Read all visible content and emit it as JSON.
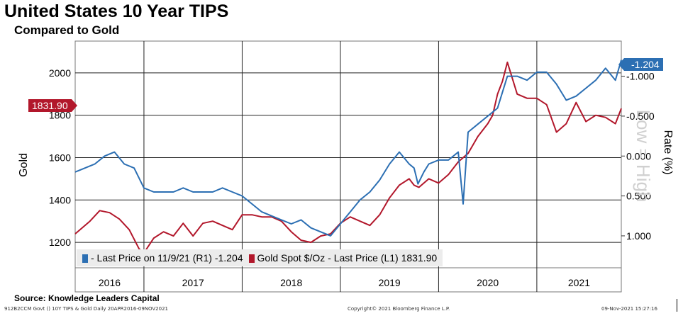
{
  "header": {
    "title": "United States 10 Year TIPS",
    "subtitle": "Compared to Gold"
  },
  "callouts": {
    "gold_last": "1831.90",
    "tips_last": "-1.204"
  },
  "legend": {
    "tips": "- Last Price on 11/9/21 (R1) -1.204",
    "gold": "Gold Spot   $/Oz - Last Price (L1) 1831.90"
  },
  "footer": {
    "source": "Source: Knowledge Leaders Capital",
    "meta": "912B2CCM Govt () 10Y TIPS & Gold  Daily 20APR2016-09NOV2021",
    "copyright": "Copyright© 2021 Bloomberg Finance L.P.",
    "timestamp": "09-Nov-2021 15:27:16"
  },
  "colors": {
    "gold": "#b2172b",
    "tips": "#2c6fb3"
  },
  "chart_data": {
    "type": "line",
    "title": "United States 10 Year TIPS",
    "subtitle": "Compared to Gold",
    "ylabel_left": "Gold",
    "ylabel_right": "Rate (%)",
    "right_axis_note": "Low = High",
    "x_categories": [
      "2016",
      "2017",
      "2018",
      "2019",
      "2020",
      "2021"
    ],
    "x_range": [
      2016.3,
      2021.86
    ],
    "left_axis": {
      "min": 1080,
      "max": 2150,
      "ticks": [
        1200,
        1400,
        1600,
        1800,
        2000
      ],
      "tick_labels": [
        "1200",
        "1400",
        "1600",
        "1800",
        "2000"
      ]
    },
    "right_axis": {
      "top": -1.44,
      "bottom": 1.4,
      "inverted": true,
      "ticks": [
        -1.0,
        -0.5,
        0.0,
        0.5,
        1.0
      ],
      "tick_labels": [
        "-1.000",
        "-0.500",
        "0.000",
        "0.500",
        "1.000"
      ]
    },
    "series": [
      {
        "name": "Gold Spot $/Oz - Last Price (L1)",
        "axis": "left",
        "last": 1831.9,
        "x": [
          2016.3,
          2016.45,
          2016.55,
          2016.65,
          2016.75,
          2016.85,
          2016.95,
          2017.0,
          2017.1,
          2017.2,
          2017.3,
          2017.4,
          2017.5,
          2017.6,
          2017.7,
          2017.8,
          2017.9,
          2018.0,
          2018.1,
          2018.2,
          2018.3,
          2018.4,
          2018.5,
          2018.6,
          2018.7,
          2018.8,
          2018.9,
          2019.0,
          2019.1,
          2019.2,
          2019.3,
          2019.4,
          2019.5,
          2019.6,
          2019.7,
          2019.75,
          2019.8,
          2019.9,
          2020.0,
          2020.1,
          2020.2,
          2020.3,
          2020.4,
          2020.5,
          2020.55,
          2020.6,
          2020.65,
          2020.7,
          2020.8,
          2020.9,
          2021.0,
          2021.1,
          2021.2,
          2021.3,
          2021.4,
          2021.5,
          2021.6,
          2021.7,
          2021.8,
          2021.86
        ],
        "values": [
          1240,
          1300,
          1350,
          1340,
          1310,
          1260,
          1170,
          1150,
          1220,
          1250,
          1230,
          1290,
          1230,
          1290,
          1300,
          1280,
          1260,
          1330,
          1330,
          1320,
          1320,
          1300,
          1250,
          1210,
          1200,
          1230,
          1240,
          1290,
          1320,
          1300,
          1280,
          1330,
          1410,
          1470,
          1500,
          1470,
          1460,
          1500,
          1480,
          1520,
          1580,
          1620,
          1700,
          1760,
          1800,
          1900,
          1960,
          2050,
          1900,
          1880,
          1880,
          1850,
          1720,
          1760,
          1860,
          1770,
          1800,
          1790,
          1760,
          1832
        ]
      },
      {
        "name": "Last Price on 11/9/21 (R1)",
        "axis": "right",
        "last": -1.204,
        "x": [
          2016.3,
          2016.4,
          2016.5,
          2016.6,
          2016.7,
          2016.8,
          2016.9,
          2017.0,
          2017.1,
          2017.2,
          2017.3,
          2017.4,
          2017.5,
          2017.6,
          2017.7,
          2017.8,
          2017.9,
          2018.0,
          2018.1,
          2018.2,
          2018.3,
          2018.4,
          2018.5,
          2018.6,
          2018.7,
          2018.8,
          2018.9,
          2019.0,
          2019.1,
          2019.2,
          2019.3,
          2019.4,
          2019.5,
          2019.6,
          2019.7,
          2019.75,
          2019.77,
          2019.79,
          2019.85,
          2019.9,
          2020.0,
          2020.1,
          2020.15,
          2020.2,
          2020.25,
          2020.3,
          2020.4,
          2020.5,
          2020.55,
          2020.6,
          2020.7,
          2020.8,
          2020.9,
          2021.0,
          2021.1,
          2021.2,
          2021.3,
          2021.4,
          2021.5,
          2021.6,
          2021.7,
          2021.8,
          2021.86
        ],
        "values": [
          0.2,
          0.15,
          0.1,
          0.0,
          -0.05,
          0.1,
          0.15,
          0.4,
          0.45,
          0.45,
          0.45,
          0.4,
          0.45,
          0.45,
          0.45,
          0.4,
          0.45,
          0.5,
          0.6,
          0.7,
          0.75,
          0.8,
          0.85,
          0.8,
          0.9,
          0.95,
          1.0,
          0.85,
          0.7,
          0.55,
          0.45,
          0.3,
          0.1,
          -0.05,
          0.1,
          0.15,
          0.25,
          0.35,
          0.2,
          0.1,
          0.05,
          0.05,
          0.0,
          -0.05,
          0.6,
          -0.3,
          -0.4,
          -0.5,
          -0.55,
          -0.6,
          -1.0,
          -1.0,
          -0.95,
          -1.05,
          -1.05,
          -0.9,
          -0.7,
          -0.75,
          -0.85,
          -0.95,
          -1.1,
          -0.95,
          -1.204
        ]
      }
    ]
  }
}
